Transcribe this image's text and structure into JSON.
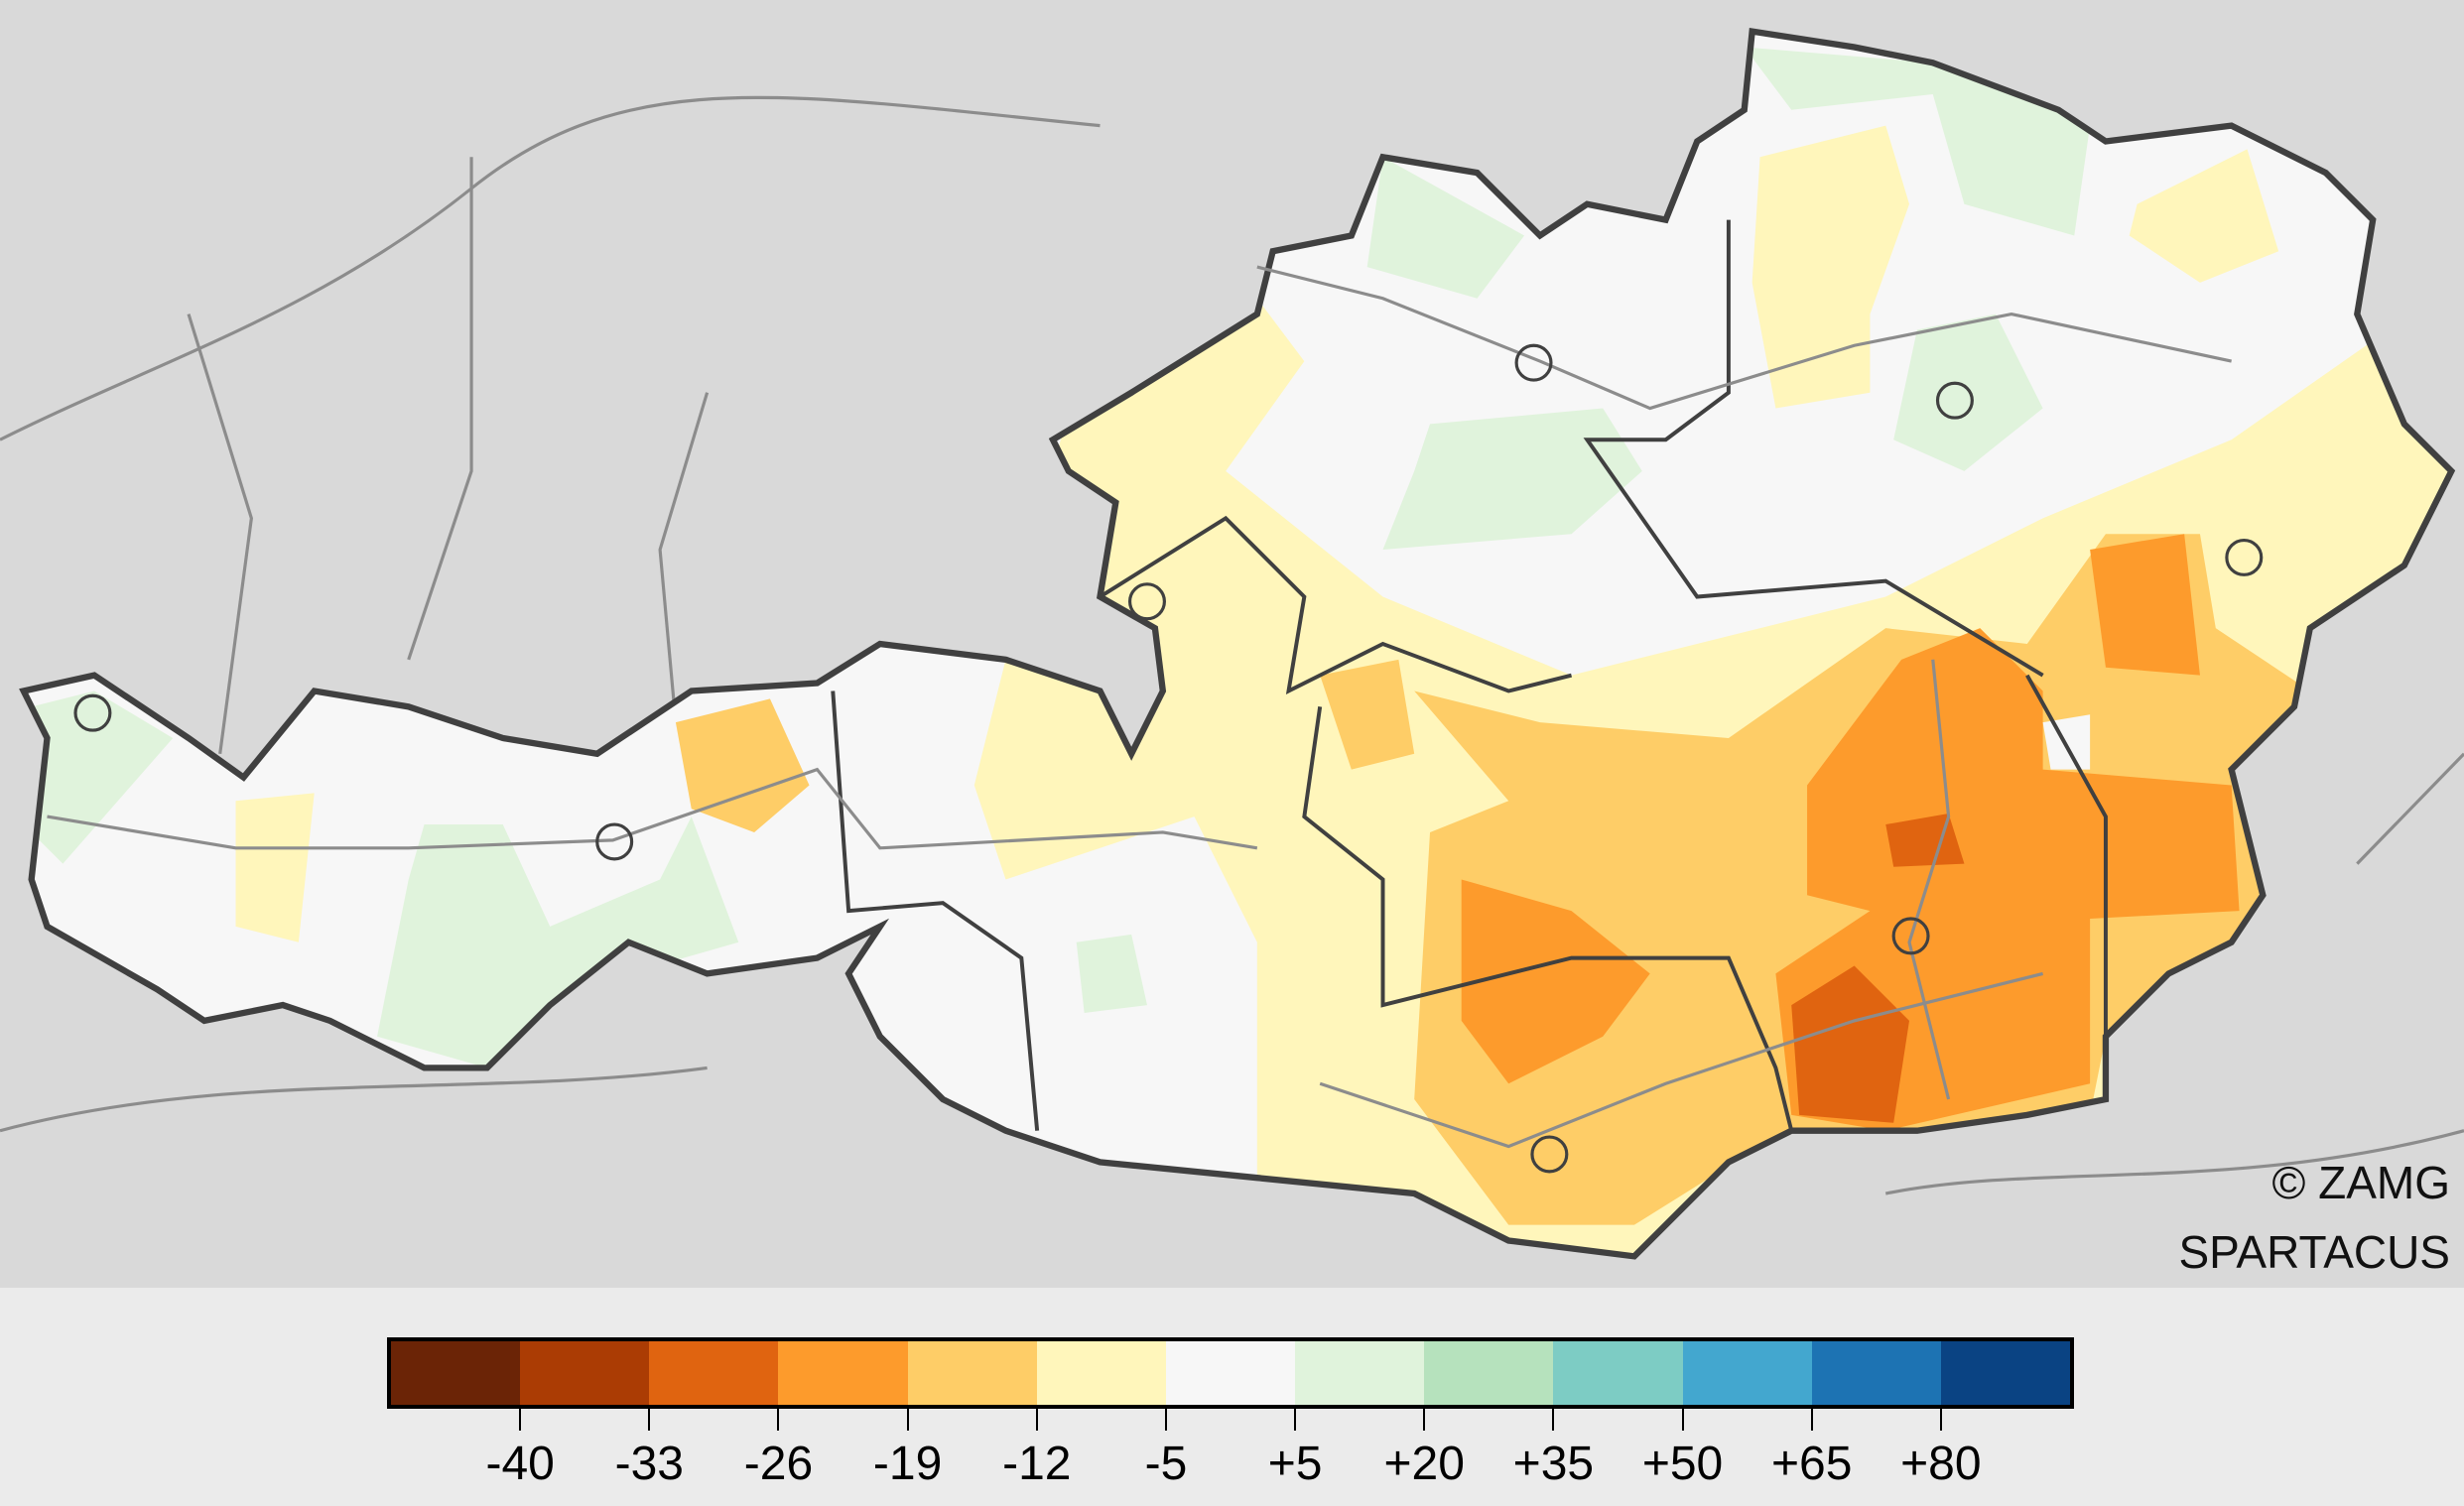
{
  "credit": {
    "line1": "© ZAMG",
    "line2": "SPARTACUS"
  },
  "legend": {
    "colors": [
      "#6b2406",
      "#ab3c04",
      "#e06410",
      "#fd9b2c",
      "#fecd67",
      "#fff6bb",
      "#f7f7f7",
      "#e0f3dc",
      "#b6e2bd",
      "#7dccc4",
      "#43a7cf",
      "#1d73b3",
      "#0a4383"
    ],
    "labels": [
      "-40",
      "-33",
      "-26",
      "-19",
      "-12",
      "-5",
      "+5",
      "+20",
      "+35",
      "+50",
      "+65",
      "+80"
    ]
  },
  "map": {
    "background": "#d9d9d9",
    "border_color": "#404040",
    "river_color": "#8c8c8c"
  }
}
